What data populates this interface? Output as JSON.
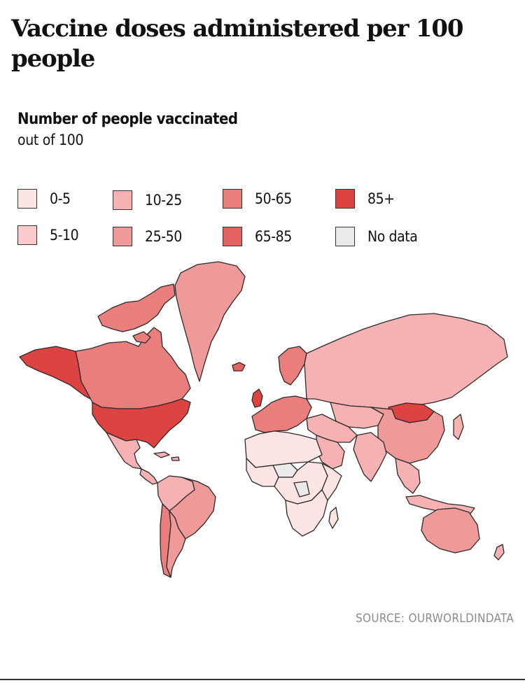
{
  "title": "Vaccine doses administered per 100 people",
  "legend": {
    "title": "Number of people vaccinated",
    "subtitle": "out of 100",
    "items": [
      {
        "label": "0-5",
        "color": "#fde4e4"
      },
      {
        "label": "5-10",
        "color": "#fbcaca"
      },
      {
        "label": "10-25",
        "color": "#f6b2b2"
      },
      {
        "label": "25-50",
        "color": "#ef9a98"
      },
      {
        "label": "50-65",
        "color": "#ea7e7c"
      },
      {
        "label": "65-85",
        "color": "#e4625f"
      },
      {
        "label": "85+",
        "color": "#dc4341"
      },
      {
        "label": "No data",
        "color": "#eaeaea"
      }
    ]
  },
  "source": "SOURCE: OURWORLDINDATA",
  "map_data": {
    "type": "choropleth",
    "regions": [
      {
        "name": "Alaska",
        "bin": "85+"
      },
      {
        "name": "Canada",
        "bin": "50-65"
      },
      {
        "name": "Greenland",
        "bin": "25-50"
      },
      {
        "name": "United States",
        "bin": "85+"
      },
      {
        "name": "Mexico",
        "bin": "10-25"
      },
      {
        "name": "Central America",
        "bin": "10-25"
      },
      {
        "name": "Brazil",
        "bin": "25-50"
      },
      {
        "name": "Northern South America",
        "bin": "10-25"
      },
      {
        "name": "Chile",
        "bin": "50-65"
      },
      {
        "name": "Argentina",
        "bin": "25-50"
      },
      {
        "name": "United Kingdom",
        "bin": "85+"
      },
      {
        "name": "Iceland",
        "bin": "65-85"
      },
      {
        "name": "Western Europe",
        "bin": "50-65"
      },
      {
        "name": "Scandinavia",
        "bin": "50-65"
      },
      {
        "name": "Russia",
        "bin": "10-25"
      },
      {
        "name": "Kazakhstan",
        "bin": "10-25"
      },
      {
        "name": "Mongolia",
        "bin": "85+"
      },
      {
        "name": "China",
        "bin": "25-50"
      },
      {
        "name": "India",
        "bin": "10-25"
      },
      {
        "name": "Middle East",
        "bin": "10-25"
      },
      {
        "name": "Saudi Arabia",
        "bin": "10-25"
      },
      {
        "name": "North Africa",
        "bin": "0-5"
      },
      {
        "name": "West Africa",
        "bin": "0-5"
      },
      {
        "name": "Central Africa",
        "bin": "0-5"
      },
      {
        "name": "East Africa",
        "bin": "0-5"
      },
      {
        "name": "Southern Africa",
        "bin": "0-5"
      },
      {
        "name": "Madagascar",
        "bin": "0-5"
      },
      {
        "name": "Sahel region",
        "bin": "No data"
      },
      {
        "name": "Congo basin",
        "bin": "No data"
      },
      {
        "name": "Southeast Asia",
        "bin": "10-25"
      },
      {
        "name": "Indonesia",
        "bin": "10-25"
      },
      {
        "name": "Japan",
        "bin": "10-25"
      },
      {
        "name": "Australia",
        "bin": "25-50"
      },
      {
        "name": "New Zealand",
        "bin": "10-25"
      }
    ]
  }
}
